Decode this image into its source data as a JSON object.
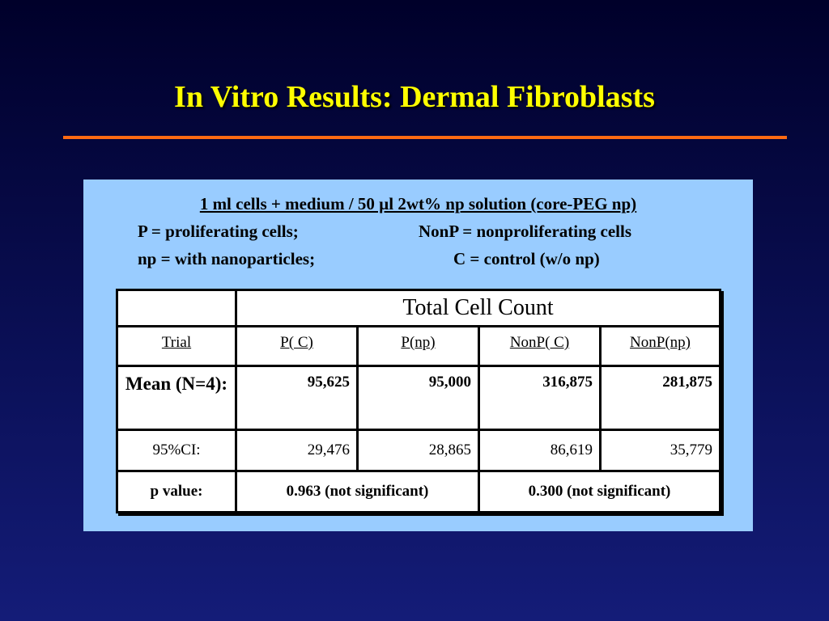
{
  "title": "In Vitro Results: Dermal Fibroblasts",
  "notes": {
    "heading": "1 ml cells + medium / 50 µl 2wt% np solution (core-PEG np)",
    "lines": [
      [
        "P = proliferating cells;",
        "NonP = nonproliferating cells"
      ],
      [
        "np = with nanoparticles;",
        "C = control (w/o np)"
      ]
    ]
  },
  "table": {
    "caption": "Total Cell Count",
    "header": [
      "Trial",
      "P( C)",
      "P(np)",
      "NonP( C)",
      "NonP(np)"
    ],
    "rows": [
      [
        "Mean (N=4):",
        "95,625",
        "95,000",
        "316,875",
        "281,875"
      ],
      [
        "95%CI:",
        "29,476",
        "28,865",
        "86,619",
        "35,779"
      ],
      [
        "p value:",
        "0.963 (not significant)",
        "0.300 (not significant)"
      ]
    ]
  }
}
